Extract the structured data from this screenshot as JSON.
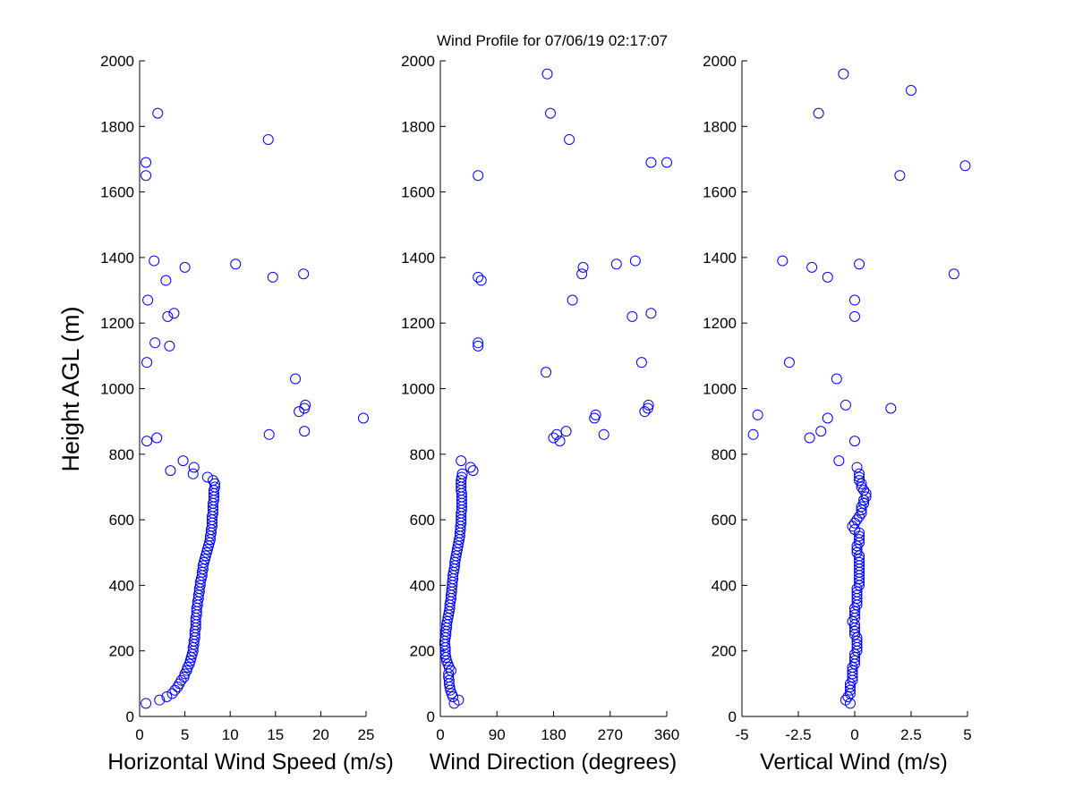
{
  "figure": {
    "title": "Wind Profile for  07/06/19 02:17:07",
    "background": "#ffffff",
    "marker_color": "#0000ff",
    "marker": "circle-open"
  },
  "chart_data": [
    {
      "type": "scatter",
      "xlabel": "Horizontal Wind Speed (m/s)",
      "ylabel": "Height AGL (m)",
      "xlim": [
        0,
        25
      ],
      "ylim": [
        0,
        2000
      ],
      "xticks": [
        "0",
        "5",
        "10",
        "15",
        "20",
        "25"
      ],
      "xtick_values": [
        0,
        5,
        10,
        15,
        20,
        25
      ],
      "yticks": [
        "0",
        "200",
        "400",
        "600",
        "800",
        "1000",
        "1200",
        "1400",
        "1600",
        "1800",
        "2000"
      ],
      "ytick_values": [
        0,
        200,
        400,
        600,
        800,
        1000,
        1200,
        1400,
        1600,
        1800,
        2000
      ],
      "grid": false,
      "points": [
        [
          0.7,
          40
        ],
        [
          2.2,
          50
        ],
        [
          3.0,
          60
        ],
        [
          3.6,
          70
        ],
        [
          3.9,
          80
        ],
        [
          4.2,
          90
        ],
        [
          4.4,
          100
        ],
        [
          4.6,
          110
        ],
        [
          4.9,
          120
        ],
        [
          5.0,
          130
        ],
        [
          5.2,
          140
        ],
        [
          5.3,
          150
        ],
        [
          5.5,
          160
        ],
        [
          5.6,
          170
        ],
        [
          5.7,
          180
        ],
        [
          5.8,
          190
        ],
        [
          5.9,
          200
        ],
        [
          5.9,
          210
        ],
        [
          6.0,
          220
        ],
        [
          6.0,
          230
        ],
        [
          6.1,
          240
        ],
        [
          6.1,
          250
        ],
        [
          6.1,
          260
        ],
        [
          6.2,
          270
        ],
        [
          6.2,
          280
        ],
        [
          6.2,
          290
        ],
        [
          6.2,
          300
        ],
        [
          6.3,
          310
        ],
        [
          6.3,
          320
        ],
        [
          6.3,
          330
        ],
        [
          6.4,
          340
        ],
        [
          6.4,
          350
        ],
        [
          6.5,
          360
        ],
        [
          6.5,
          370
        ],
        [
          6.6,
          380
        ],
        [
          6.6,
          390
        ],
        [
          6.7,
          400
        ],
        [
          6.7,
          410
        ],
        [
          6.8,
          420
        ],
        [
          6.9,
          430
        ],
        [
          6.9,
          440
        ],
        [
          7.0,
          450
        ],
        [
          7.0,
          460
        ],
        [
          7.1,
          470
        ],
        [
          7.2,
          480
        ],
        [
          7.3,
          490
        ],
        [
          7.4,
          500
        ],
        [
          7.5,
          510
        ],
        [
          7.6,
          520
        ],
        [
          7.7,
          530
        ],
        [
          7.8,
          540
        ],
        [
          7.8,
          550
        ],
        [
          7.9,
          560
        ],
        [
          7.9,
          570
        ],
        [
          8.0,
          580
        ],
        [
          8.0,
          590
        ],
        [
          8.0,
          600
        ],
        [
          8.0,
          610
        ],
        [
          8.1,
          620
        ],
        [
          8.1,
          630
        ],
        [
          8.1,
          640
        ],
        [
          8.1,
          650
        ],
        [
          8.2,
          660
        ],
        [
          8.2,
          670
        ],
        [
          8.2,
          680
        ],
        [
          8.2,
          690
        ],
        [
          8.3,
          700
        ],
        [
          8.3,
          710
        ],
        [
          8.1,
          720
        ],
        [
          7.5,
          730
        ],
        [
          5.9,
          740
        ],
        [
          6.0,
          760
        ],
        [
          4.8,
          780
        ],
        [
          3.4,
          750
        ],
        [
          1.9,
          850
        ],
        [
          0.8,
          840
        ],
        [
          14.3,
          860
        ],
        [
          18.2,
          870
        ],
        [
          24.7,
          910
        ],
        [
          17.6,
          930
        ],
        [
          18.2,
          940
        ],
        [
          18.3,
          950
        ],
        [
          17.2,
          1030
        ],
        [
          0.8,
          1080
        ],
        [
          3.3,
          1130
        ],
        [
          1.7,
          1140
        ],
        [
          3.1,
          1220
        ],
        [
          3.8,
          1230
        ],
        [
          0.9,
          1270
        ],
        [
          2.9,
          1330
        ],
        [
          14.7,
          1340
        ],
        [
          18.1,
          1350
        ],
        [
          5.0,
          1370
        ],
        [
          1.6,
          1390
        ],
        [
          10.6,
          1380
        ],
        [
          0.7,
          1650
        ],
        [
          0.7,
          1690
        ],
        [
          14.2,
          1760
        ],
        [
          2.0,
          1840
        ]
      ]
    },
    {
      "type": "scatter",
      "xlabel": "Wind Direction (degrees)",
      "ylabel": "",
      "xlim": [
        0,
        360
      ],
      "ylim": [
        0,
        2000
      ],
      "xticks": [
        "0",
        "90",
        "180",
        "270",
        "360"
      ],
      "xtick_values": [
        0,
        90,
        180,
        270,
        360
      ],
      "yticks": [
        "0",
        "200",
        "400",
        "600",
        "800",
        "1000",
        "1200",
        "1400",
        "1600",
        "1800",
        "2000"
      ],
      "ytick_values": [
        0,
        200,
        400,
        600,
        800,
        1000,
        1200,
        1400,
        1600,
        1800,
        2000
      ],
      "grid": false,
      "points": [
        [
          22,
          40
        ],
        [
          29,
          50
        ],
        [
          20,
          60
        ],
        [
          18,
          70
        ],
        [
          16,
          80
        ],
        [
          15,
          90
        ],
        [
          14,
          100
        ],
        [
          14,
          110
        ],
        [
          13,
          120
        ],
        [
          13,
          130
        ],
        [
          17,
          140
        ],
        [
          14,
          150
        ],
        [
          12,
          160
        ],
        [
          10,
          170
        ],
        [
          9,
          180
        ],
        [
          8,
          190
        ],
        [
          8,
          200
        ],
        [
          8,
          210
        ],
        [
          7,
          220
        ],
        [
          7,
          230
        ],
        [
          8,
          240
        ],
        [
          9,
          250
        ],
        [
          9,
          260
        ],
        [
          10,
          270
        ],
        [
          10,
          280
        ],
        [
          11,
          290
        ],
        [
          12,
          300
        ],
        [
          13,
          310
        ],
        [
          14,
          320
        ],
        [
          15,
          330
        ],
        [
          15,
          340
        ],
        [
          16,
          350
        ],
        [
          17,
          360
        ],
        [
          17,
          370
        ],
        [
          18,
          380
        ],
        [
          18,
          390
        ],
        [
          19,
          400
        ],
        [
          19,
          410
        ],
        [
          20,
          420
        ],
        [
          20,
          430
        ],
        [
          21,
          440
        ],
        [
          22,
          450
        ],
        [
          23,
          460
        ],
        [
          23,
          470
        ],
        [
          24,
          480
        ],
        [
          25,
          490
        ],
        [
          26,
          500
        ],
        [
          27,
          510
        ],
        [
          28,
          520
        ],
        [
          29,
          530
        ],
        [
          30,
          540
        ],
        [
          31,
          550
        ],
        [
          31,
          560
        ],
        [
          32,
          570
        ],
        [
          32,
          580
        ],
        [
          33,
          590
        ],
        [
          33,
          600
        ],
        [
          33,
          610
        ],
        [
          33,
          620
        ],
        [
          34,
          630
        ],
        [
          34,
          640
        ],
        [
          34,
          650
        ],
        [
          34,
          660
        ],
        [
          34,
          670
        ],
        [
          34,
          680
        ],
        [
          33,
          690
        ],
        [
          33,
          700
        ],
        [
          33,
          710
        ],
        [
          33,
          720
        ],
        [
          34,
          730
        ],
        [
          35,
          740
        ],
        [
          52,
          750
        ],
        [
          48,
          760
        ],
        [
          33,
          780
        ],
        [
          190,
          840
        ],
        [
          180,
          850
        ],
        [
          185,
          860
        ],
        [
          200,
          870
        ],
        [
          260,
          860
        ],
        [
          245,
          910
        ],
        [
          247,
          920
        ],
        [
          325,
          930
        ],
        [
          330,
          940
        ],
        [
          331,
          950
        ],
        [
          168,
          1050
        ],
        [
          320,
          1080
        ],
        [
          60,
          1130
        ],
        [
          60,
          1140
        ],
        [
          210,
          1270
        ],
        [
          305,
          1220
        ],
        [
          335,
          1230
        ],
        [
          65,
          1330
        ],
        [
          60,
          1340
        ],
        [
          225,
          1350
        ],
        [
          227,
          1370
        ],
        [
          280,
          1380
        ],
        [
          310,
          1390
        ],
        [
          60,
          1650
        ],
        [
          335,
          1690
        ],
        [
          360,
          1690
        ],
        [
          205,
          1760
        ],
        [
          175,
          1840
        ],
        [
          170,
          1960
        ]
      ]
    },
    {
      "type": "scatter",
      "xlabel": "Vertical Wind (m/s)",
      "ylabel": "",
      "xlim": [
        -5,
        5
      ],
      "ylim": [
        0,
        2000
      ],
      "xticks": [
        "-5",
        "-2.5",
        "0",
        "2.5",
        "5"
      ],
      "xtick_values": [
        -5,
        -2.5,
        0,
        2.5,
        5
      ],
      "yticks": [
        "0",
        "200",
        "400",
        "600",
        "800",
        "1000",
        "1200",
        "1400",
        "1600",
        "1800",
        "2000"
      ],
      "ytick_values": [
        0,
        200,
        400,
        600,
        800,
        1000,
        1200,
        1400,
        1600,
        1800,
        2000
      ],
      "grid": false,
      "points": [
        [
          -0.2,
          40
        ],
        [
          -0.4,
          50
        ],
        [
          -0.3,
          60
        ],
        [
          -0.2,
          70
        ],
        [
          -0.2,
          80
        ],
        [
          -0.2,
          90
        ],
        [
          -0.2,
          100
        ],
        [
          -0.1,
          110
        ],
        [
          -0.1,
          120
        ],
        [
          -0.1,
          130
        ],
        [
          -0.1,
          140
        ],
        [
          -0.1,
          150
        ],
        [
          0.0,
          160
        ],
        [
          0.0,
          170
        ],
        [
          0.0,
          180
        ],
        [
          0.0,
          190
        ],
        [
          0.1,
          200
        ],
        [
          0.1,
          210
        ],
        [
          0.1,
          220
        ],
        [
          0.1,
          230
        ],
        [
          0.1,
          240
        ],
        [
          0.0,
          250
        ],
        [
          0.0,
          260
        ],
        [
          0.0,
          270
        ],
        [
          0.0,
          280
        ],
        [
          -0.1,
          290
        ],
        [
          0.0,
          300
        ],
        [
          0.0,
          310
        ],
        [
          0.0,
          320
        ],
        [
          0.0,
          330
        ],
        [
          0.1,
          340
        ],
        [
          0.1,
          350
        ],
        [
          0.1,
          360
        ],
        [
          0.1,
          370
        ],
        [
          0.1,
          380
        ],
        [
          0.1,
          390
        ],
        [
          0.2,
          400
        ],
        [
          0.2,
          410
        ],
        [
          0.2,
          420
        ],
        [
          0.2,
          430
        ],
        [
          0.2,
          440
        ],
        [
          0.2,
          450
        ],
        [
          0.2,
          460
        ],
        [
          0.2,
          470
        ],
        [
          0.2,
          480
        ],
        [
          0.2,
          490
        ],
        [
          0.1,
          500
        ],
        [
          0.1,
          510
        ],
        [
          0.1,
          520
        ],
        [
          0.2,
          530
        ],
        [
          0.2,
          540
        ],
        [
          0.2,
          550
        ],
        [
          0.2,
          560
        ],
        [
          0.0,
          570
        ],
        [
          -0.1,
          580
        ],
        [
          0.0,
          590
        ],
        [
          0.1,
          600
        ],
        [
          0.2,
          610
        ],
        [
          0.3,
          620
        ],
        [
          0.3,
          630
        ],
        [
          0.3,
          640
        ],
        [
          0.4,
          650
        ],
        [
          0.4,
          660
        ],
        [
          0.5,
          670
        ],
        [
          0.5,
          680
        ],
        [
          0.4,
          690
        ],
        [
          0.3,
          700
        ],
        [
          0.3,
          710
        ],
        [
          0.2,
          720
        ],
        [
          0.2,
          730
        ],
        [
          0.2,
          740
        ],
        [
          0.1,
          760
        ],
        [
          -0.7,
          780
        ],
        [
          0.0,
          840
        ],
        [
          -2.0,
          850
        ],
        [
          -4.5,
          860
        ],
        [
          -1.5,
          870
        ],
        [
          -1.2,
          910
        ],
        [
          -4.3,
          920
        ],
        [
          1.6,
          940
        ],
        [
          -0.4,
          950
        ],
        [
          -0.8,
          1030
        ],
        [
          -2.9,
          1080
        ],
        [
          0.0,
          1220
        ],
        [
          0.0,
          1270
        ],
        [
          -1.2,
          1340
        ],
        [
          4.4,
          1350
        ],
        [
          -1.9,
          1370
        ],
        [
          0.2,
          1380
        ],
        [
          -3.2,
          1390
        ],
        [
          2.0,
          1650
        ],
        [
          4.9,
          1680
        ],
        [
          -1.6,
          1840
        ],
        [
          2.5,
          1910
        ],
        [
          -0.5,
          1960
        ]
      ]
    }
  ]
}
